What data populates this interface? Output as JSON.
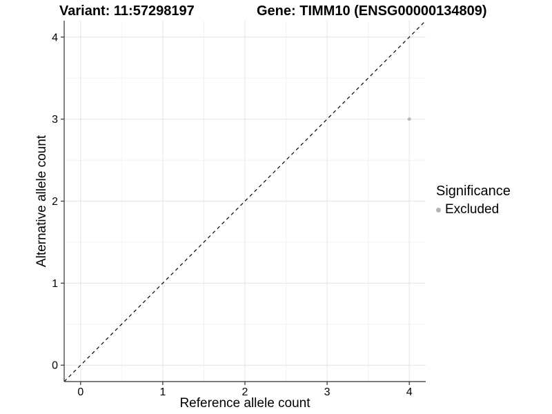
{
  "header": {
    "variant_title": "Variant: 11:57298197",
    "gene_title": "Gene: TIMM10 (ENSG00000134809)"
  },
  "axes": {
    "x": {
      "label": "Reference allele count",
      "ticks": [
        "0",
        "1",
        "2",
        "3",
        "4"
      ]
    },
    "y": {
      "label": "Alternative allele count",
      "ticks": [
        "0",
        "1",
        "2",
        "3",
        "4"
      ]
    }
  },
  "legend": {
    "title": "Significance",
    "items": [
      {
        "label": "Excluded",
        "color": "#b5b5b5"
      }
    ]
  },
  "chart_data": {
    "type": "scatter",
    "title": "Variant: 11:57298197 | Gene: TIMM10 (ENSG00000134809)",
    "xlabel": "Reference allele count",
    "ylabel": "Alternative allele count",
    "xlim": [
      -0.2,
      4.2
    ],
    "ylim": [
      -0.2,
      4.2
    ],
    "x_ticks": [
      0,
      1,
      2,
      3,
      4
    ],
    "y_ticks": [
      0,
      1,
      2,
      3,
      4
    ],
    "x_minor_ticks": [
      0.5,
      1.5,
      2.5,
      3.5
    ],
    "y_minor_ticks": [
      0.5,
      1.5,
      2.5,
      3.5
    ],
    "grid": "on",
    "legend_position": "right",
    "series": [
      {
        "name": "Excluded",
        "color": "#b8b8b8",
        "points": [
          {
            "x": 4,
            "y": 3
          }
        ]
      }
    ],
    "reference_line": {
      "type": "identity",
      "slope": 1,
      "intercept": 0,
      "style": "dashed",
      "color": "#000000"
    }
  },
  "colors": {
    "background": "#ffffff",
    "grid_major": "#e4e4e4",
    "grid_minor": "#f2f2f2",
    "axis": "#2f2f2f",
    "text": "#000000"
  }
}
